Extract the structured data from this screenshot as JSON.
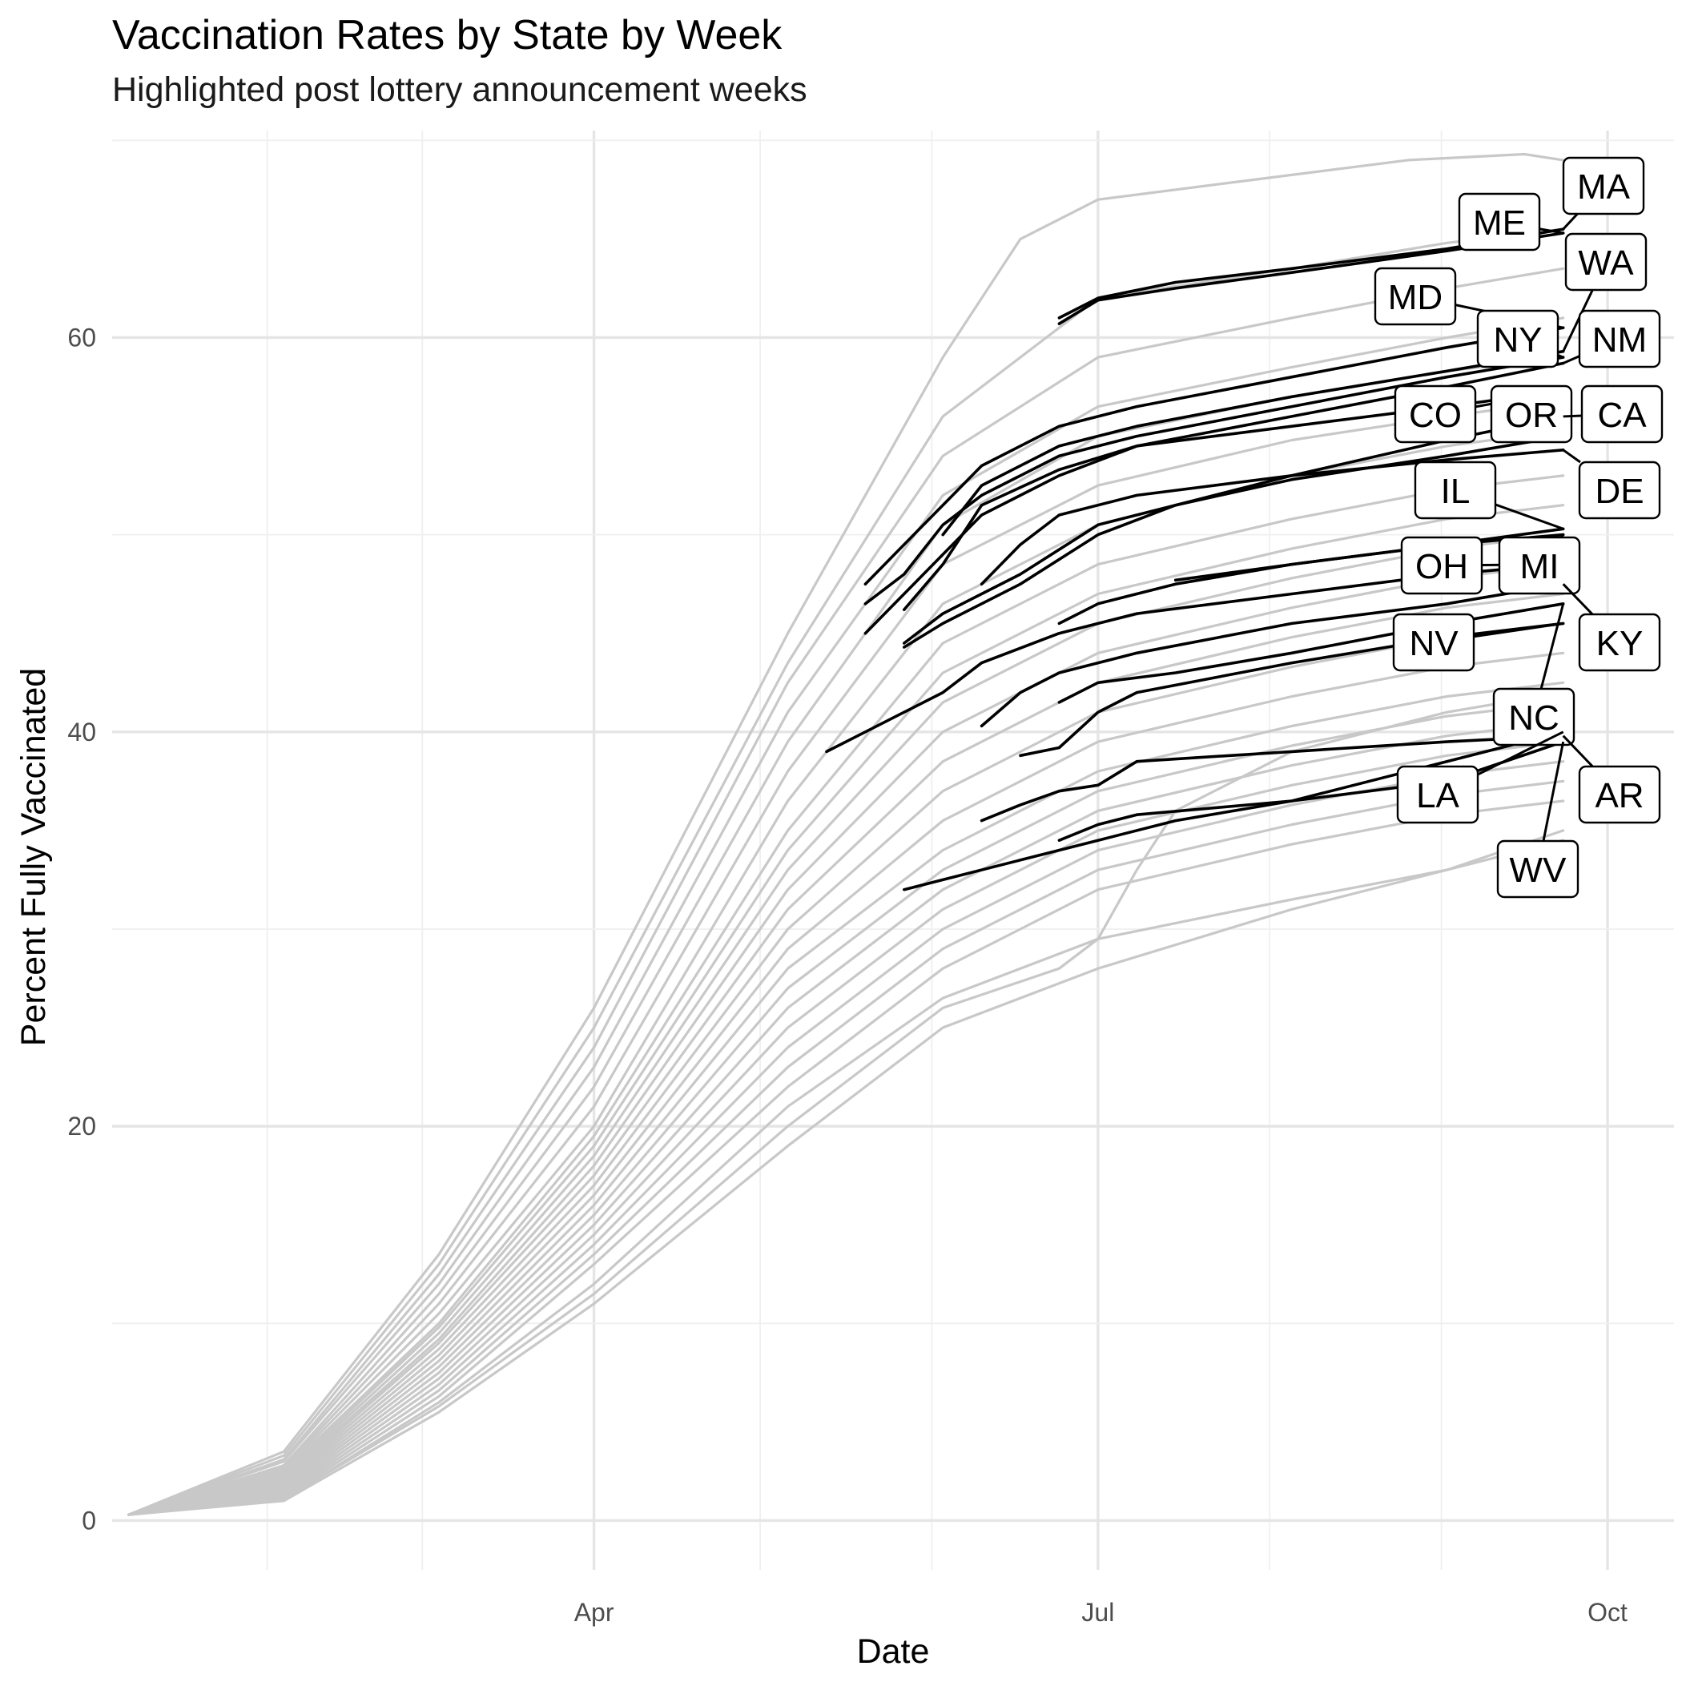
{
  "chart_data": {
    "type": "line",
    "title": "Vaccination Rates by State by Week",
    "subtitle": "Highlighted post lottery announcement weeks",
    "xlabel": "Date",
    "ylabel": "Percent Fully Vaccinated",
    "x_ticks": [
      "Apr",
      "Jul",
      "Oct"
    ],
    "y_ticks": [
      0,
      20,
      40,
      60
    ],
    "xlim": [
      "2021-01-04",
      "2021-10-13"
    ],
    "ylim": [
      -2.5,
      70.5
    ],
    "grid": true,
    "colors": {
      "background_series": "#c8c8c8",
      "highlighted_series": "#000000",
      "grid": "#e5e5e5"
    },
    "background_series": [
      {
        "x": [
          "2021-01-07",
          "2021-02-04",
          "2021-03-04",
          "2021-04-01",
          "2021-05-06",
          "2021-06-03",
          "2021-06-17",
          "2021-07-01",
          "2021-07-29",
          "2021-08-26",
          "2021-09-16",
          "2021-09-23",
          "2021-09-30"
        ],
        "values": [
          0.3,
          3.5,
          13.5,
          26,
          45,
          59,
          65,
          67,
          68,
          69,
          69.3,
          69,
          68.5
        ]
      },
      {
        "x": [
          "2021-01-07",
          "2021-02-04",
          "2021-03-04",
          "2021-04-01",
          "2021-05-06",
          "2021-06-03",
          "2021-07-01",
          "2021-08-05",
          "2021-09-02",
          "2021-09-23"
        ],
        "values": [
          0.3,
          3.3,
          13,
          25,
          43.5,
          56,
          62,
          63.5,
          64.8,
          65.5
        ]
      },
      {
        "x": [
          "2021-01-07",
          "2021-02-04",
          "2021-03-04",
          "2021-04-01",
          "2021-05-06",
          "2021-06-03",
          "2021-07-01",
          "2021-08-05",
          "2021-09-02",
          "2021-09-23"
        ],
        "values": [
          0.3,
          3.1,
          12.5,
          24,
          42.5,
          54,
          59,
          61,
          62.5,
          63.5
        ]
      },
      {
        "x": [
          "2021-01-07",
          "2021-02-04",
          "2021-03-04",
          "2021-04-01",
          "2021-05-06",
          "2021-06-03",
          "2021-07-01",
          "2021-08-05",
          "2021-09-02",
          "2021-09-23"
        ],
        "values": [
          0.3,
          3,
          12,
          23,
          41,
          52,
          56.5,
          58.5,
          60,
          61
        ]
      },
      {
        "x": [
          "2021-01-07",
          "2021-02-04",
          "2021-03-04",
          "2021-04-01",
          "2021-05-06",
          "2021-06-03",
          "2021-07-01",
          "2021-08-05",
          "2021-09-02",
          "2021-09-23"
        ],
        "values": [
          0.3,
          2.8,
          11.5,
          22,
          39.5,
          50.5,
          55,
          57,
          58.3,
          59
        ]
      },
      {
        "x": [
          "2021-01-07",
          "2021-02-04",
          "2021-03-04",
          "2021-04-01",
          "2021-05-06",
          "2021-06-03",
          "2021-07-01",
          "2021-08-05",
          "2021-09-02",
          "2021-09-23"
        ],
        "values": [
          0.3,
          2.7,
          11,
          21,
          38,
          48.5,
          52.5,
          54.8,
          56,
          56.8
        ]
      },
      {
        "x": [
          "2021-01-07",
          "2021-02-04",
          "2021-03-04",
          "2021-04-01",
          "2021-05-06",
          "2021-06-03",
          "2021-07-01",
          "2021-08-05",
          "2021-09-02",
          "2021-09-23"
        ],
        "values": [
          0.3,
          2.6,
          10.5,
          20,
          36.5,
          46.5,
          50.5,
          53,
          54.5,
          55.3
        ]
      },
      {
        "x": [
          "2021-01-07",
          "2021-02-04",
          "2021-03-04",
          "2021-04-01",
          "2021-05-06",
          "2021-06-03",
          "2021-07-01",
          "2021-08-05",
          "2021-09-02",
          "2021-09-23"
        ],
        "values": [
          0.3,
          2.5,
          10,
          19.5,
          35,
          44.5,
          48.5,
          50.8,
          52.3,
          53
        ]
      },
      {
        "x": [
          "2021-01-07",
          "2021-02-04",
          "2021-03-04",
          "2021-04-01",
          "2021-05-06",
          "2021-06-03",
          "2021-07-01",
          "2021-08-05",
          "2021-09-02",
          "2021-09-23"
        ],
        "values": [
          0.3,
          2.4,
          9.8,
          19,
          34,
          43,
          47,
          49.3,
          50.8,
          51.5
        ]
      },
      {
        "x": [
          "2021-01-07",
          "2021-02-04",
          "2021-03-04",
          "2021-04-01",
          "2021-05-06",
          "2021-06-03",
          "2021-07-01",
          "2021-08-05",
          "2021-09-02",
          "2021-09-23"
        ],
        "values": [
          0.3,
          2.3,
          9.5,
          18.5,
          33,
          41.5,
          45.5,
          47.8,
          49.3,
          50
        ]
      },
      {
        "x": [
          "2021-01-07",
          "2021-02-04",
          "2021-03-04",
          "2021-04-01",
          "2021-05-06",
          "2021-06-03",
          "2021-07-01",
          "2021-08-05",
          "2021-09-02",
          "2021-09-23"
        ],
        "values": [
          0.3,
          2.2,
          9.2,
          18,
          32,
          40,
          44,
          46.3,
          47.8,
          48.5
        ]
      },
      {
        "x": [
          "2021-01-07",
          "2021-02-04",
          "2021-03-04",
          "2021-04-01",
          "2021-05-06",
          "2021-06-03",
          "2021-07-01",
          "2021-08-05",
          "2021-09-02",
          "2021-09-23"
        ],
        "values": [
          0.3,
          2.1,
          9,
          17.5,
          31,
          38.5,
          42.5,
          44.8,
          46.3,
          47
        ]
      },
      {
        "x": [
          "2021-01-07",
          "2021-02-04",
          "2021-03-04",
          "2021-04-01",
          "2021-05-06",
          "2021-06-03",
          "2021-07-01",
          "2021-08-05",
          "2021-09-02",
          "2021-09-23"
        ],
        "values": [
          0.3,
          2,
          8.7,
          17,
          30,
          37,
          41,
          43.3,
          44.8,
          45.5
        ]
      },
      {
        "x": [
          "2021-01-07",
          "2021-02-04",
          "2021-03-04",
          "2021-04-01",
          "2021-05-06",
          "2021-06-03",
          "2021-07-01",
          "2021-08-05",
          "2021-09-02",
          "2021-09-23"
        ],
        "values": [
          0.3,
          1.9,
          8.4,
          16.5,
          29,
          35.5,
          39.5,
          41.8,
          43.3,
          44
        ]
      },
      {
        "x": [
          "2021-01-07",
          "2021-02-04",
          "2021-03-04",
          "2021-04-01",
          "2021-05-06",
          "2021-06-03",
          "2021-07-01",
          "2021-08-05",
          "2021-09-02",
          "2021-09-23"
        ],
        "values": [
          0.3,
          1.8,
          8.1,
          16,
          28,
          34,
          38,
          40.3,
          41.8,
          42.5
        ]
      },
      {
        "x": [
          "2021-01-07",
          "2021-02-04",
          "2021-03-04",
          "2021-04-01",
          "2021-05-06",
          "2021-06-03",
          "2021-07-01",
          "2021-08-05",
          "2021-09-02",
          "2021-09-23"
        ],
        "values": [
          0.3,
          1.7,
          7.8,
          15.5,
          27,
          33,
          37,
          39.3,
          40.8,
          41.5
        ]
      },
      {
        "x": [
          "2021-01-07",
          "2021-02-04",
          "2021-03-04",
          "2021-04-01",
          "2021-05-06",
          "2021-06-03",
          "2021-07-01",
          "2021-08-05",
          "2021-09-02",
          "2021-09-23"
        ],
        "values": [
          0.3,
          1.6,
          7.5,
          15,
          26,
          32,
          36,
          38.3,
          39.8,
          40.5
        ]
      },
      {
        "x": [
          "2021-01-07",
          "2021-02-04",
          "2021-03-04",
          "2021-04-01",
          "2021-05-06",
          "2021-06-03",
          "2021-07-01",
          "2021-08-05",
          "2021-09-02",
          "2021-09-23"
        ],
        "values": [
          0.3,
          1.5,
          7.2,
          14.5,
          25,
          31,
          35,
          37.3,
          38.8,
          39.5
        ]
      },
      {
        "x": [
          "2021-01-07",
          "2021-02-04",
          "2021-03-04",
          "2021-04-01",
          "2021-05-06",
          "2021-06-03",
          "2021-07-01",
          "2021-08-05",
          "2021-09-02",
          "2021-09-23"
        ],
        "values": [
          0.3,
          1.4,
          6.9,
          14,
          24,
          30,
          34,
          36.3,
          37.8,
          38.5
        ]
      },
      {
        "x": [
          "2021-01-07",
          "2021-02-04",
          "2021-03-04",
          "2021-04-01",
          "2021-05-06",
          "2021-06-03",
          "2021-07-01",
          "2021-08-05",
          "2021-09-02",
          "2021-09-23"
        ],
        "values": [
          0.3,
          1.3,
          6.6,
          13.5,
          23,
          29,
          33,
          35.3,
          36.8,
          37.5
        ]
      },
      {
        "x": [
          "2021-01-07",
          "2021-02-04",
          "2021-03-04",
          "2021-04-01",
          "2021-05-06",
          "2021-06-03",
          "2021-07-01",
          "2021-08-05",
          "2021-09-02",
          "2021-09-23"
        ],
        "values": [
          0.3,
          1.2,
          6.3,
          13,
          22,
          28,
          32,
          34.3,
          35.8,
          36.5
        ]
      },
      {
        "x": [
          "2021-01-07",
          "2021-02-04",
          "2021-03-04",
          "2021-04-01",
          "2021-05-06",
          "2021-06-03",
          "2021-07-01",
          "2021-08-05",
          "2021-09-02",
          "2021-09-23"
        ],
        "values": [
          0.3,
          1.1,
          6,
          12,
          21,
          26.5,
          29.5,
          31.5,
          33,
          34.5
        ]
      },
      {
        "x": [
          "2021-01-07",
          "2021-02-04",
          "2021-03-04",
          "2021-04-01",
          "2021-05-06",
          "2021-06-03",
          "2021-06-24",
          "2021-07-01",
          "2021-07-08",
          "2021-07-15",
          "2021-08-05",
          "2021-09-02",
          "2021-09-23"
        ],
        "values": [
          0.3,
          1.1,
          5.8,
          11.5,
          20,
          26,
          28,
          29.5,
          33,
          36,
          39,
          41,
          42
        ]
      },
      {
        "x": [
          "2021-01-07",
          "2021-02-04",
          "2021-03-04",
          "2021-04-01",
          "2021-05-06",
          "2021-06-03",
          "2021-07-01",
          "2021-08-05",
          "2021-09-02",
          "2021-09-23"
        ],
        "values": [
          0.3,
          1,
          5.5,
          11,
          19,
          25,
          28,
          31,
          33,
          35
        ]
      }
    ],
    "highlighted_series": [
      {
        "name": "MA",
        "x": [
          "2021-06-24",
          "2021-07-01",
          "2021-07-15",
          "2021-08-05",
          "2021-09-02",
          "2021-09-23"
        ],
        "values": [
          61,
          62,
          62.8,
          63.5,
          64.5,
          65.5
        ]
      },
      {
        "name": "ME",
        "x": [
          "2021-06-24",
          "2021-07-01",
          "2021-07-15",
          "2021-08-05",
          "2021-09-02",
          "2021-09-23"
        ],
        "values": [
          60.7,
          61.9,
          62.5,
          63.3,
          64.4,
          65.3
        ]
      },
      {
        "name": "MD",
        "x": [
          "2021-05-20",
          "2021-05-27",
          "2021-06-03",
          "2021-06-10",
          "2021-06-24",
          "2021-07-08",
          "2021-08-05",
          "2021-09-02",
          "2021-09-23"
        ],
        "values": [
          47.5,
          49.5,
          51.5,
          53.5,
          55.5,
          56.5,
          58,
          59.5,
          60.5
        ]
      },
      {
        "name": "WA",
        "x": [
          "2021-06-03",
          "2021-06-10",
          "2021-06-24",
          "2021-07-08",
          "2021-08-05",
          "2021-09-02",
          "2021-09-23"
        ],
        "values": [
          50,
          52.5,
          54.5,
          55.5,
          57,
          58.3,
          59.3
        ]
      },
      {
        "name": "NY",
        "x": [
          "2021-05-20",
          "2021-05-27",
          "2021-06-03",
          "2021-06-10",
          "2021-06-24",
          "2021-07-08",
          "2021-08-05",
          "2021-09-02",
          "2021-09-23"
        ],
        "values": [
          46.5,
          48,
          50.5,
          52,
          54,
          55,
          56.5,
          58,
          59
        ]
      },
      {
        "name": "NM",
        "x": [
          "2021-05-27",
          "2021-06-03",
          "2021-06-10",
          "2021-06-24",
          "2021-07-08",
          "2021-08-05",
          "2021-09-02",
          "2021-09-23"
        ],
        "values": [
          46.2,
          48.5,
          51.5,
          53.3,
          54.5,
          56,
          57.5,
          58.7
        ]
      },
      {
        "name": "CO",
        "x": [
          "2021-05-20",
          "2021-05-27",
          "2021-06-03",
          "2021-06-10",
          "2021-06-24",
          "2021-07-08",
          "2021-08-05",
          "2021-09-02",
          "2021-09-23"
        ],
        "values": [
          45,
          47,
          49,
          51,
          53,
          54.5,
          55.5,
          56.5,
          57.3
        ]
      },
      {
        "name": "OR",
        "x": [
          "2021-05-27",
          "2021-06-03",
          "2021-06-17",
          "2021-07-01",
          "2021-07-15",
          "2021-08-05",
          "2021-09-02",
          "2021-09-23"
        ],
        "values": [
          44.5,
          46,
          48,
          50.5,
          51.5,
          52.8,
          54,
          55
        ]
      },
      {
        "name": "CA",
        "x": [
          "2021-05-27",
          "2021-06-03",
          "2021-06-17",
          "2021-07-01",
          "2021-07-15",
          "2021-08-05",
          "2021-09-02",
          "2021-09-23"
        ],
        "values": [
          44.3,
          45.5,
          47.5,
          50,
          51.5,
          53,
          54.8,
          56
        ]
      },
      {
        "name": "DE",
        "x": [
          "2021-06-10",
          "2021-06-17",
          "2021-06-24",
          "2021-07-08",
          "2021-08-05",
          "2021-09-02",
          "2021-09-23"
        ],
        "values": [
          47.5,
          49.5,
          51,
          52,
          53,
          53.8,
          54.3
        ]
      },
      {
        "name": "IL",
        "x": [
          "2021-06-24",
          "2021-07-01",
          "2021-07-15",
          "2021-08-05",
          "2021-09-02",
          "2021-09-23"
        ],
        "values": [
          45.5,
          46.5,
          47.5,
          48.5,
          49.5,
          50.3
        ]
      },
      {
        "name": "OH",
        "x": [
          "2021-05-13",
          "2021-05-20",
          "2021-05-27",
          "2021-06-03",
          "2021-06-10",
          "2021-06-24",
          "2021-07-08",
          "2021-08-05",
          "2021-09-02",
          "2021-09-23"
        ],
        "values": [
          39,
          40,
          41,
          42,
          43.5,
          45,
          46,
          47,
          48,
          48.5
        ]
      },
      {
        "name": "MI",
        "x": [
          "2021-07-15",
          "2021-08-05",
          "2021-09-02",
          "2021-09-23"
        ],
        "values": [
          47.7,
          48.5,
          49.5,
          50
        ]
      },
      {
        "name": "KY",
        "x": [
          "2021-06-10",
          "2021-06-17",
          "2021-06-24",
          "2021-07-08",
          "2021-08-05",
          "2021-09-02",
          "2021-09-23"
        ],
        "values": [
          40.3,
          42,
          43,
          44,
          45.5,
          46.5,
          47.5
        ]
      },
      {
        "name": "NV",
        "x": [
          "2021-06-17",
          "2021-06-24",
          "2021-07-01",
          "2021-07-08",
          "2021-08-05",
          "2021-09-02",
          "2021-09-23"
        ],
        "values": [
          38.8,
          39.2,
          41,
          42,
          43.5,
          44.8,
          45.5
        ]
      },
      {
        "name": "NC",
        "x": [
          "2021-06-24",
          "2021-07-01",
          "2021-07-15",
          "2021-08-05",
          "2021-09-02",
          "2021-09-23"
        ],
        "values": [
          41.5,
          42.5,
          43,
          44,
          45.5,
          46.5
        ]
      },
      {
        "name": "AR",
        "x": [
          "2021-06-10",
          "2021-06-17",
          "2021-06-24",
          "2021-07-01",
          "2021-07-08",
          "2021-08-05",
          "2021-09-02",
          "2021-09-23"
        ],
        "values": [
          35.5,
          36.3,
          37,
          37.3,
          38.5,
          39,
          39.5,
          39.8
        ]
      },
      {
        "name": "LA",
        "x": [
          "2021-05-27",
          "2021-06-03",
          "2021-06-17",
          "2021-07-01",
          "2021-07-15",
          "2021-08-05",
          "2021-09-02",
          "2021-09-23"
        ],
        "values": [
          32,
          32.5,
          33.5,
          34.5,
          35.5,
          36.5,
          38.5,
          40
        ]
      },
      {
        "name": "WV",
        "x": [
          "2021-06-24",
          "2021-07-01",
          "2021-07-08",
          "2021-08-05",
          "2021-09-02",
          "2021-09-23"
        ],
        "values": [
          34.5,
          35.3,
          35.8,
          36.5,
          37.5,
          39.5
        ]
      }
    ],
    "annotations": [
      "MA",
      "ME",
      "WA",
      "MD",
      "NY",
      "NM",
      "CO",
      "OR",
      "CA",
      "IL",
      "DE",
      "OH",
      "MI",
      "NV",
      "KY",
      "NC",
      "LA",
      "AR",
      "WV"
    ]
  }
}
